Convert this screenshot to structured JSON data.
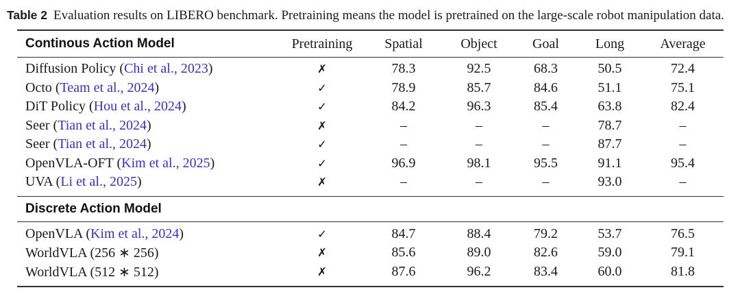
{
  "caption": {
    "label": "Table 2",
    "text": "Evaluation results on LIBERO benchmark. Pretraining means the model is pretrained on the large-scale robot manipulation data."
  },
  "colors": {
    "citation": "#3c2fc9",
    "text": "#1a1a1a",
    "rule": "#2e2e2e"
  },
  "table": {
    "section1_title": "Continous Action Model",
    "section2_title": "Discrete Action Model",
    "columns": [
      "Pretraining",
      "Spatial",
      "Object",
      "Goal",
      "Long",
      "Average"
    ],
    "rows1": [
      {
        "name_pre": "Diffusion Policy (",
        "cite": "Chi et al., 2023",
        "name_post": ")",
        "pretraining": "✗",
        "spatial": "78.3",
        "object": "92.5",
        "goal": "68.3",
        "long": "50.5",
        "average": "72.4"
      },
      {
        "name_pre": "Octo (",
        "cite": "Team et al., 2024",
        "name_post": ")",
        "pretraining": "✓",
        "spatial": "78.9",
        "object": "85.7",
        "goal": "84.6",
        "long": "51.1",
        "average": "75.1"
      },
      {
        "name_pre": "DiT Policy (",
        "cite": "Hou et al., 2024",
        "name_post": ")",
        "pretraining": "✓",
        "spatial": "84.2",
        "object": "96.3",
        "goal": "85.4",
        "long": "63.8",
        "average": "82.4"
      },
      {
        "name_pre": "Seer (",
        "cite": "Tian et al., 2024",
        "name_post": ")",
        "pretraining": "✗",
        "spatial": "–",
        "object": "–",
        "goal": "–",
        "long": "78.7",
        "average": "–"
      },
      {
        "name_pre": "Seer (",
        "cite": "Tian et al., 2024",
        "name_post": ")",
        "pretraining": "✓",
        "spatial": "–",
        "object": "–",
        "goal": "–",
        "long": "87.7",
        "average": "–"
      },
      {
        "name_pre": "OpenVLA-OFT (",
        "cite": "Kim et al., 2025",
        "name_post": ")",
        "pretraining": "✓",
        "spatial": "96.9",
        "object": "98.1",
        "goal": "95.5",
        "long": "91.1",
        "average": "95.4"
      },
      {
        "name_pre": "UVA (",
        "cite": "Li et al., 2025",
        "name_post": ")",
        "pretraining": "✗",
        "spatial": "–",
        "object": "–",
        "goal": "–",
        "long": "93.0",
        "average": "–"
      }
    ],
    "rows2": [
      {
        "name_pre": "OpenVLA (",
        "cite": "Kim et al., 2024",
        "name_post": ")",
        "pretraining": "✓",
        "spatial": "84.7",
        "object": "88.4",
        "goal": "79.2",
        "long": "53.7",
        "average": "76.5"
      },
      {
        "name_pre": "WorldVLA (256 ∗ 256)",
        "cite": "",
        "name_post": "",
        "pretraining": "✗",
        "spatial": "85.6",
        "object": "89.0",
        "goal": "82.6",
        "long": "59.0",
        "average": "79.1"
      },
      {
        "name_pre": "WorldVLA (512 ∗ 512)",
        "cite": "",
        "name_post": "",
        "pretraining": "✗",
        "spatial": "87.6",
        "object": "96.2",
        "goal": "83.4",
        "long": "60.0",
        "average": "81.8"
      }
    ]
  }
}
